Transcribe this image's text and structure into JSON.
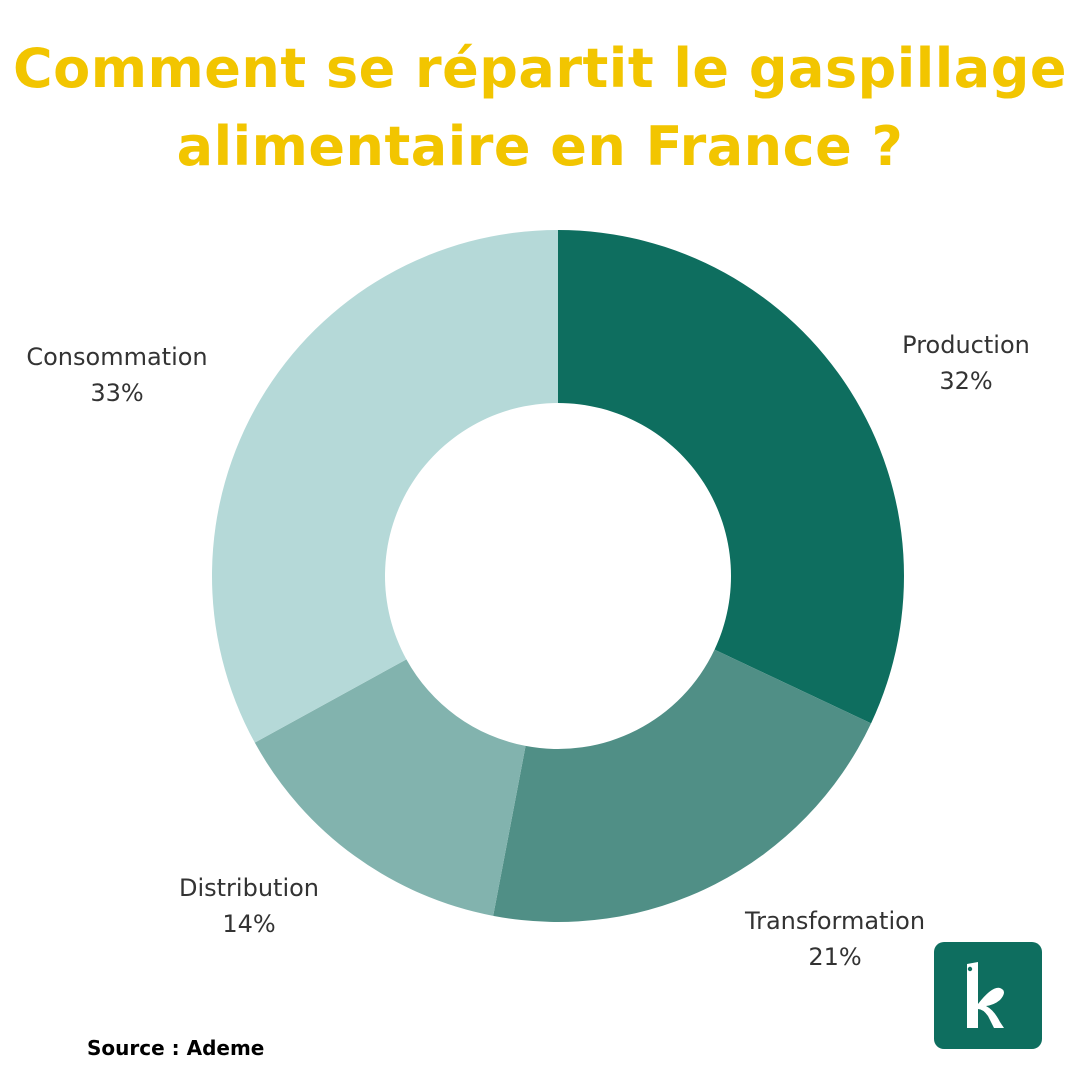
{
  "title": {
    "line1": "Comment se répartit le gaspillage",
    "line2": "alimentaire en France ?"
  },
  "source": "Source : Ademe",
  "logo": {
    "icon": "k-logo-icon",
    "color": "#0E6E5F"
  },
  "colors": {
    "title": "#F2C500",
    "production": "#0E6E5F",
    "transformation": "#508F86",
    "distribution": "#82B3AE",
    "consommation": "#B5D9D8"
  },
  "chart_data": {
    "type": "donut",
    "categories": [
      "Production",
      "Transformation",
      "Distribution",
      "Consommation"
    ],
    "values": [
      32,
      21,
      14,
      33
    ],
    "labels": [
      "32%",
      "21%",
      "14%",
      "33%"
    ],
    "unit": "%",
    "legend": "labels beside slices"
  }
}
